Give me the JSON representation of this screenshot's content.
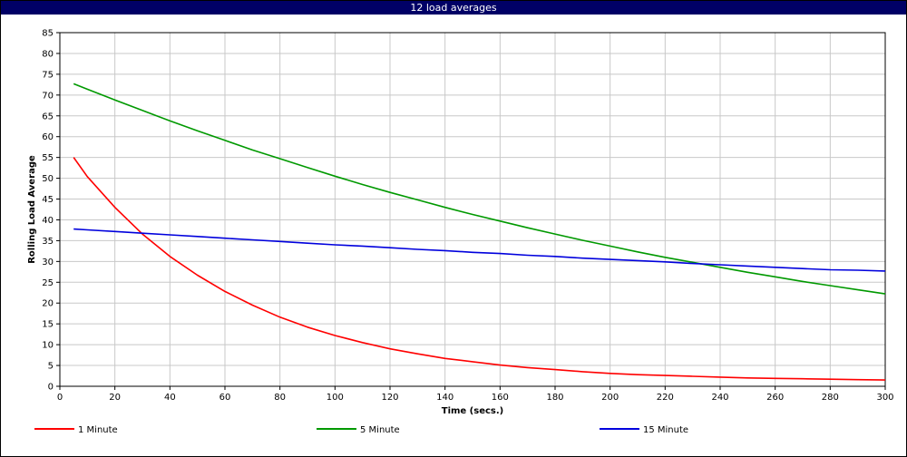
{
  "window": {
    "title": "12 load averages"
  },
  "chart_data": {
    "type": "line",
    "title": "12 load averages",
    "xlabel": "Time (secs.)",
    "ylabel": "Rolling Load Average",
    "xlim": [
      0,
      300
    ],
    "ylim": [
      0,
      85
    ],
    "xticks": [
      0,
      20,
      40,
      60,
      80,
      100,
      120,
      140,
      160,
      180,
      200,
      220,
      240,
      260,
      280,
      300
    ],
    "yticks": [
      0,
      5,
      10,
      15,
      20,
      25,
      30,
      35,
      40,
      45,
      50,
      55,
      60,
      65,
      70,
      75,
      80,
      85
    ],
    "grid": true,
    "legend_position": "bottom",
    "x": [
      5,
      10,
      20,
      30,
      40,
      50,
      60,
      70,
      80,
      90,
      100,
      110,
      120,
      130,
      140,
      150,
      160,
      170,
      180,
      190,
      200,
      210,
      220,
      230,
      240,
      250,
      260,
      270,
      280,
      290,
      300
    ],
    "series": [
      {
        "name": "1 Minute",
        "color": "#ff0000",
        "values": [
          55.0,
          50.4,
          43.0,
          36.6,
          31.2,
          26.7,
          22.8,
          19.5,
          16.6,
          14.2,
          12.2,
          10.5,
          9.0,
          7.8,
          6.7,
          5.9,
          5.1,
          4.5,
          4.0,
          3.5,
          3.1,
          2.8,
          2.6,
          2.4,
          2.2,
          2.0,
          1.9,
          1.8,
          1.7,
          1.6,
          1.5
        ]
      },
      {
        "name": "5 Minute",
        "color": "#009900",
        "values": [
          72.7,
          71.4,
          68.8,
          66.3,
          63.8,
          61.4,
          59.1,
          56.8,
          54.7,
          52.6,
          50.5,
          48.5,
          46.6,
          44.8,
          43.0,
          41.3,
          39.7,
          38.1,
          36.6,
          35.1,
          33.7,
          32.3,
          31.0,
          29.8,
          28.6,
          27.4,
          26.3,
          25.2,
          24.2,
          23.2,
          22.2
        ]
      },
      {
        "name": "15 Minute",
        "color": "#0000dd",
        "values": [
          37.8,
          37.6,
          37.2,
          36.8,
          36.4,
          36.0,
          35.6,
          35.2,
          34.8,
          34.4,
          34.0,
          33.7,
          33.3,
          32.9,
          32.6,
          32.2,
          31.9,
          31.5,
          31.2,
          30.8,
          30.5,
          30.2,
          29.9,
          29.5,
          29.2,
          28.9,
          28.6,
          28.3,
          28.0,
          27.9,
          27.7
        ]
      }
    ]
  }
}
